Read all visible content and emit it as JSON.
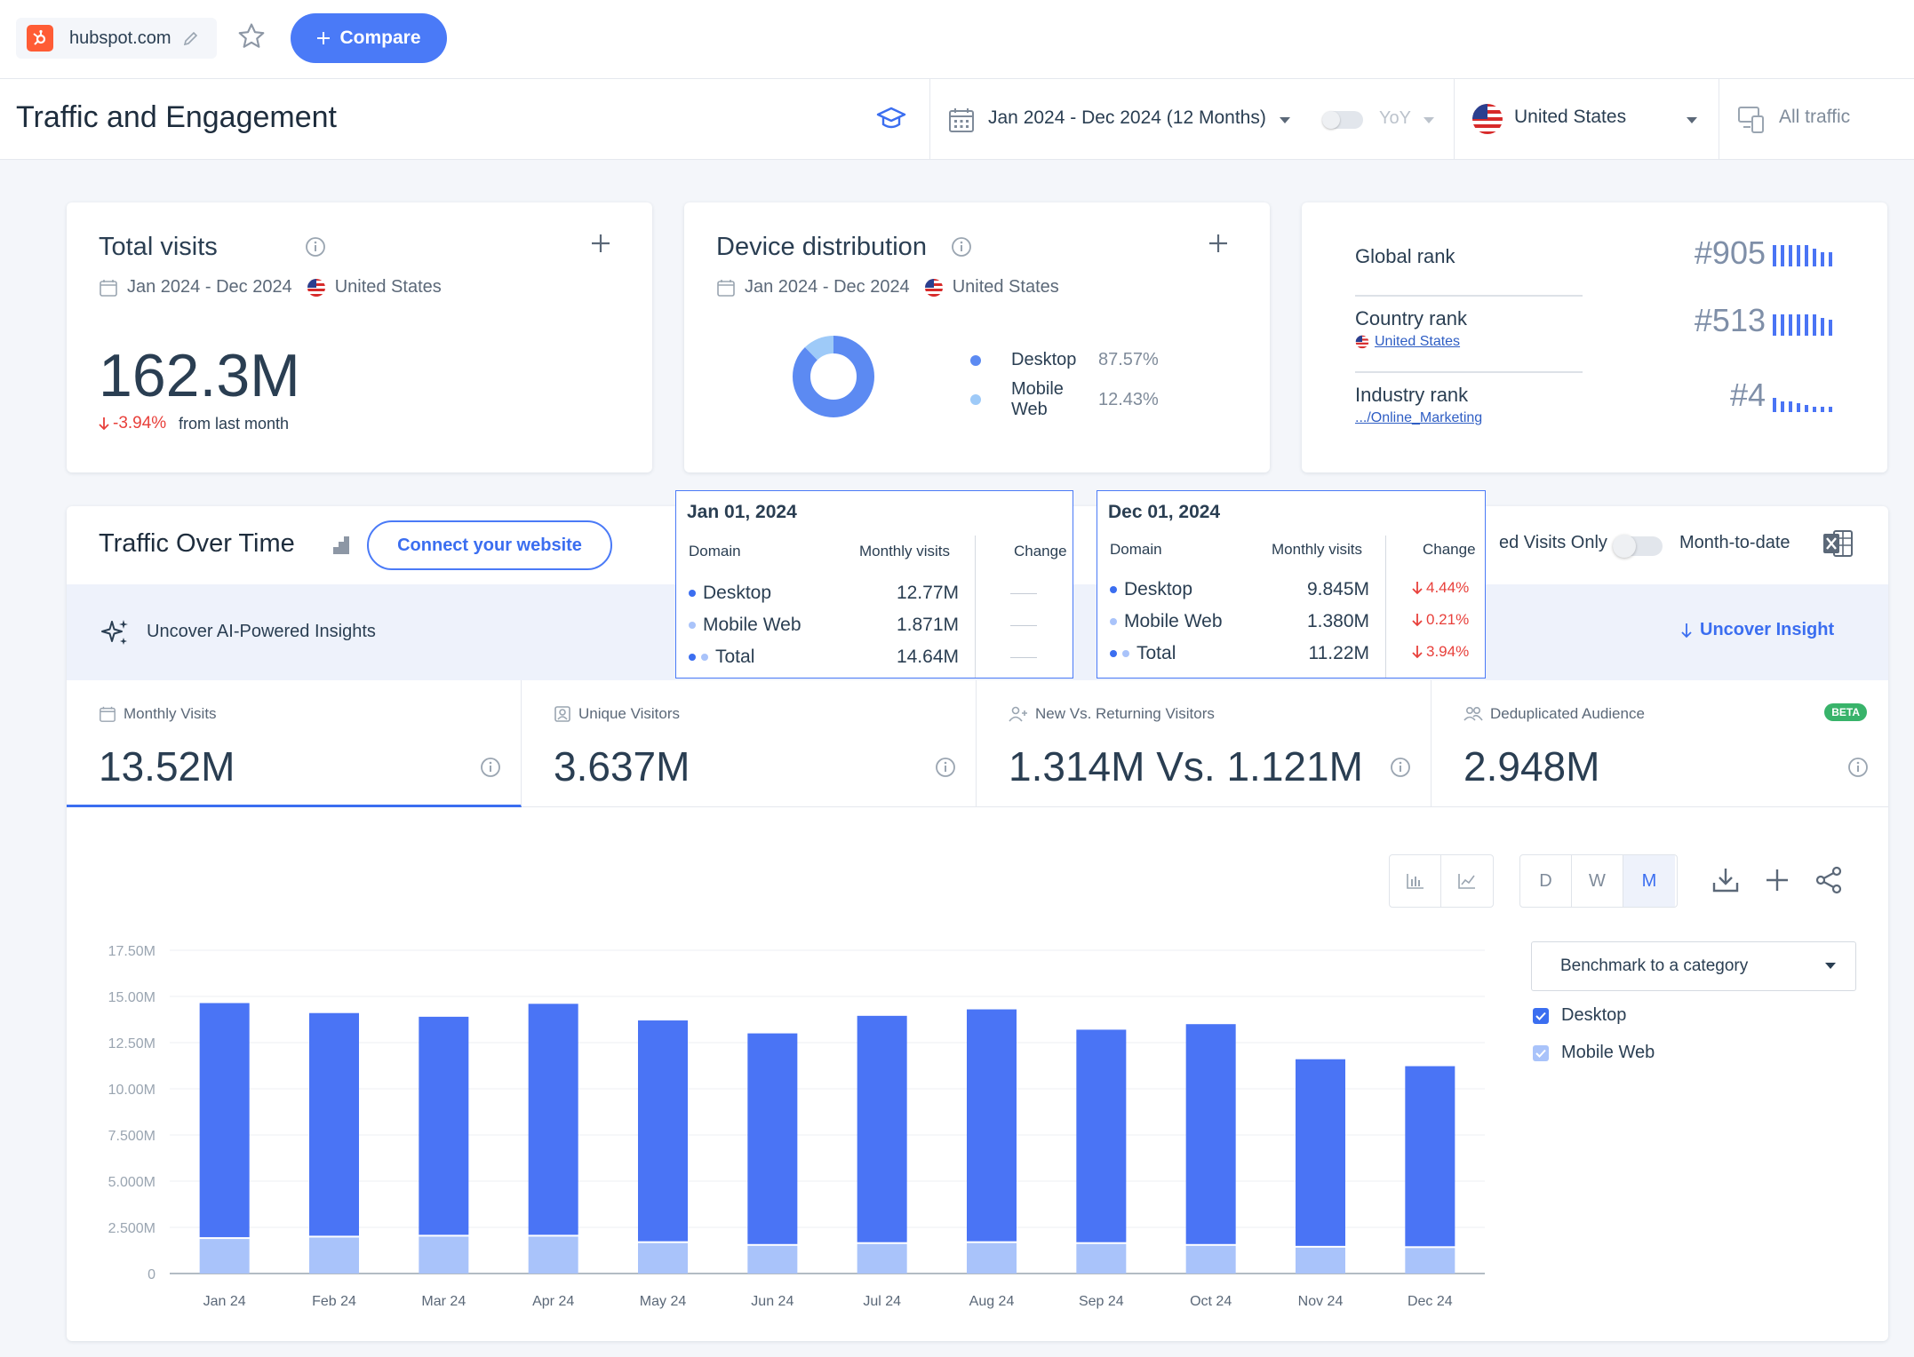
{
  "topbar": {
    "site_name": "hubspot.com",
    "compare_label": "Compare"
  },
  "titlebar": {
    "title": "Traffic and Engagement",
    "date_range": "Jan 2024 - Dec 2024 (12 Months)",
    "yoy_label": "YoY",
    "country": "United States",
    "traffic_filter": "All traffic"
  },
  "total_visits": {
    "title": "Total visits",
    "date": "Jan 2024 - Dec 2024",
    "country": "United States",
    "value": "162.3M",
    "change": "-3.94%",
    "change_note": "from last month"
  },
  "device_distribution": {
    "title": "Device distribution",
    "date": "Jan 2024 - Dec 2024",
    "country": "United States",
    "items": [
      {
        "label": "Desktop",
        "pct": "87.57%",
        "value": 87.57,
        "color": "#5c8af2"
      },
      {
        "label": "Mobile Web",
        "pct": "12.43%",
        "value": 12.43,
        "color": "#9ecaf8"
      }
    ]
  },
  "ranks": {
    "global_label": "Global rank",
    "global_value": "#905",
    "country_label": "Country rank",
    "country_link": "United States",
    "country_value": "#513",
    "industry_label": "Industry rank",
    "industry_link": ".../Online_Marketing",
    "industry_value": "#4"
  },
  "traffic_over_time": {
    "title": "Traffic Over Time",
    "connect_label": "Connect your website",
    "only_label": "ed Visits Only",
    "mtd_label": "Month-to-date",
    "ai_label": "Uncover AI-Powered Insights",
    "uncover_label": "Uncover Insight"
  },
  "metrics": [
    {
      "label": "Monthly Visits",
      "value": "13.52M",
      "icon": "calendar-icon"
    },
    {
      "label": "Unique Visitors",
      "value": "3.637M",
      "icon": "person-badge-icon"
    },
    {
      "label": "New Vs. Returning Visitors",
      "value": "1.314M Vs. 1.121M",
      "icon": "person-add-icon"
    },
    {
      "label": "Deduplicated Audience",
      "value": "2.948M",
      "icon": "people-icon",
      "badge": "BETA"
    }
  ],
  "granularity": {
    "d": "D",
    "w": "W",
    "m": "M",
    "selected": "M"
  },
  "benchmark": {
    "label": "Benchmark to a category",
    "checks": [
      {
        "label": "Desktop",
        "color": "#3b6ef0"
      },
      {
        "label": "Mobile Web",
        "color": "#a9c3fa"
      }
    ]
  },
  "tooltips": [
    {
      "date": "Jan 01, 2024",
      "headers": {
        "domain": "Domain",
        "visits": "Monthly visits",
        "change": "Change"
      },
      "rows": [
        {
          "label": "Desktop",
          "value": "12.77M",
          "change": ""
        },
        {
          "label": "Mobile Web",
          "value": "1.871M",
          "change": ""
        },
        {
          "label": "Total",
          "value": "14.64M",
          "change": ""
        }
      ]
    },
    {
      "date": "Dec 01, 2024",
      "headers": {
        "domain": "Domain",
        "visits": "Monthly visits",
        "change": "Change"
      },
      "rows": [
        {
          "label": "Desktop",
          "value": "9.845M",
          "change": "4.44%"
        },
        {
          "label": "Mobile Web",
          "value": "1.380M",
          "change": "0.21%"
        },
        {
          "label": "Total",
          "value": "11.22M",
          "change": "3.94%"
        }
      ]
    }
  ],
  "chart_data": {
    "type": "bar",
    "stacked": true,
    "categories": [
      "Jan 24",
      "Feb 24",
      "Mar 24",
      "Apr 24",
      "May 24",
      "Jun 24",
      "Jul 24",
      "Aug 24",
      "Sep 24",
      "Oct 24",
      "Nov 24",
      "Dec 24"
    ],
    "series": [
      {
        "name": "Mobile Web",
        "color": "#a9c3fa",
        "values": [
          1.871,
          1.95,
          2.0,
          2.0,
          1.65,
          1.5,
          1.6,
          1.65,
          1.6,
          1.5,
          1.4,
          1.38
        ]
      },
      {
        "name": "Desktop",
        "color": "#4a74f5",
        "values": [
          12.77,
          12.15,
          11.9,
          12.6,
          12.05,
          11.5,
          12.35,
          12.65,
          11.6,
          12.0,
          10.2,
          9.845
        ]
      }
    ],
    "ylim": [
      0,
      17.5
    ],
    "yticks": [
      "0",
      "2.500M",
      "5.000M",
      "7.500M",
      "10.00M",
      "12.50M",
      "15.00M",
      "17.50M"
    ],
    "ytick_values": [
      0,
      2.5,
      5,
      7.5,
      10,
      12.5,
      15,
      17.5
    ],
    "grid": true
  }
}
